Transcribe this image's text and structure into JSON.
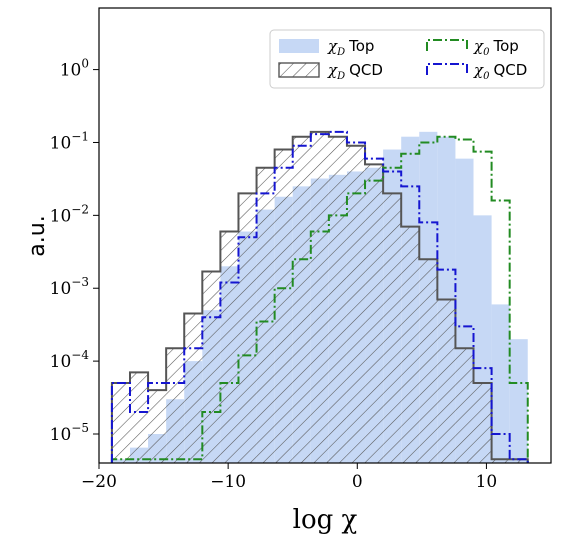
{
  "chart_data": {
    "type": "histogram",
    "xlabel": "log χ",
    "ylabel": "a.u.",
    "xlim": [
      -20,
      15
    ],
    "ylim": [
      4e-06,
      7
    ],
    "yscale": "log",
    "x_ticks": [
      -20,
      -10,
      0,
      10
    ],
    "x_tick_labels": [
      "−20",
      "−10",
      "0",
      "10"
    ],
    "y_ticks": [
      1e-05,
      0.0001,
      0.001,
      0.01,
      0.1,
      1
    ],
    "y_tick_labels": [
      {
        "base": "10",
        "exp": "−5"
      },
      {
        "base": "10",
        "exp": "−4"
      },
      {
        "base": "10",
        "exp": "−3"
      },
      {
        "base": "10",
        "exp": "−2"
      },
      {
        "base": "10",
        "exp": "−1"
      },
      {
        "base": "10",
        "exp": "0"
      }
    ],
    "grid": false,
    "legend_position": "top-right",
    "bin_edges": [
      -19,
      -17.6,
      -16.2,
      -14.8,
      -13.4,
      -12,
      -10.6,
      -9.2,
      -7.8,
      -6.4,
      -5,
      -3.6,
      -2.2,
      -0.8,
      0.6,
      2,
      3.4,
      4.8,
      6.2,
      7.6,
      9,
      10.4,
      11.8,
      13.2
    ],
    "series": [
      {
        "name": "Top",
        "name_symbol": "χ",
        "name_sub": "D",
        "style": "filled",
        "color": "#c6d8f5",
        "values": [
          4.5e-06,
          6.5e-06,
          1e-05,
          3e-05,
          0.0001,
          0.0005,
          0.002,
          0.006,
          0.012,
          0.018,
          0.025,
          0.032,
          0.036,
          0.04,
          0.045,
          0.08,
          0.12,
          0.14,
          0.12,
          0.06,
          0.01,
          0.0006,
          0.0002
        ]
      },
      {
        "name": "QCD",
        "name_symbol": "χ",
        "name_sub": "D",
        "style": "hatched",
        "color": "#555555",
        "values": [
          5e-05,
          7e-05,
          4e-05,
          0.00015,
          0.00045,
          0.0017,
          0.006,
          0.02,
          0.045,
          0.08,
          0.12,
          0.14,
          0.12,
          0.09,
          0.05,
          0.02,
          0.007,
          0.0025,
          0.0007,
          0.00015,
          5e-05,
          4.5e-06,
          4.5e-06
        ]
      },
      {
        "name": "Top",
        "name_symbol": "χ",
        "name_sub": "0",
        "style": "dashdot",
        "color": "#228b22",
        "values": [
          4.5e-06,
          4.5e-06,
          4.5e-06,
          4.5e-06,
          4.5e-06,
          2e-05,
          5e-05,
          0.00012,
          0.00035,
          0.001,
          0.0025,
          0.006,
          0.01,
          0.02,
          0.03,
          0.045,
          0.07,
          0.1,
          0.12,
          0.11,
          0.075,
          0.016,
          5e-05
        ]
      },
      {
        "name": "QCD",
        "name_symbol": "χ",
        "name_sub": "0",
        "style": "dashdot",
        "color": "#1515d0",
        "values": [
          5e-05,
          2e-05,
          5e-05,
          5e-05,
          0.00015,
          0.0004,
          0.0012,
          0.005,
          0.02,
          0.045,
          0.09,
          0.13,
          0.14,
          0.1,
          0.06,
          0.04,
          0.025,
          0.008,
          0.0018,
          0.0003,
          8e-05,
          1e-05,
          4.5e-06
        ]
      }
    ]
  }
}
